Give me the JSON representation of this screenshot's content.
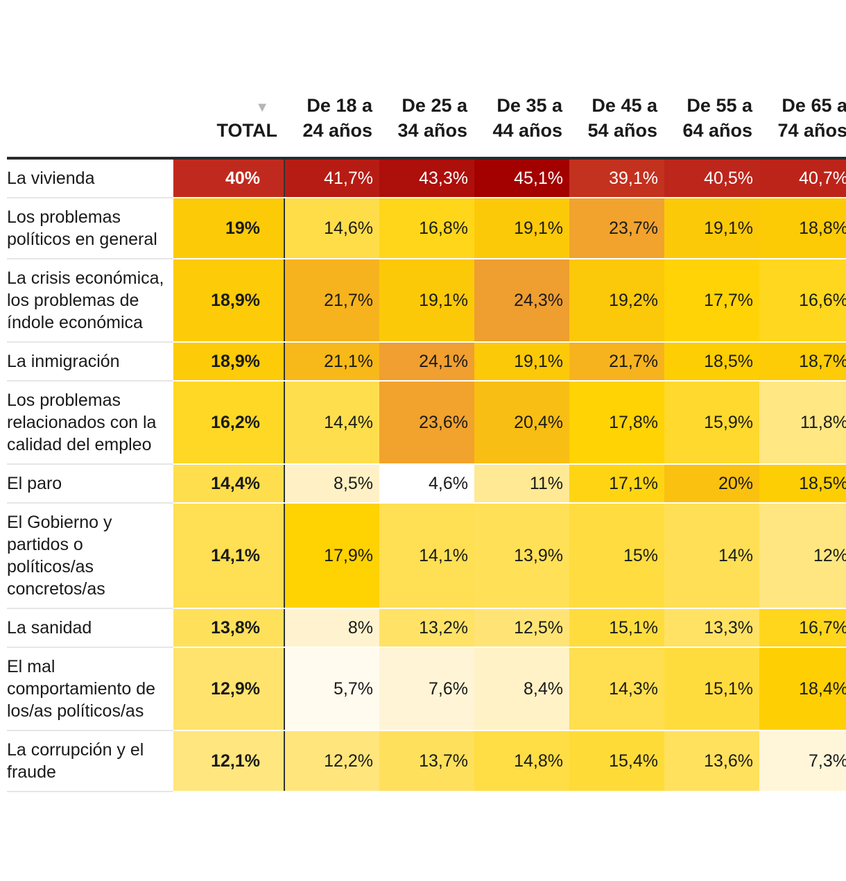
{
  "chart_data": {
    "type": "table",
    "columns": {
      "label": "",
      "total": "TOTAL",
      "sort_indicator": "▼",
      "ages": [
        "De 18 a 24 años",
        "De 25 a 34 años",
        "De 35 a 44 años",
        "De 45 a 54 años",
        "De 55 a 64 años",
        "De 65 a 74 años"
      ]
    },
    "rows": [
      {
        "label": "La vivienda",
        "total": "40%",
        "values": [
          "41,7%",
          "43,3%",
          "45,1%",
          "39,1%",
          "40,5%",
          "40,7%"
        ]
      },
      {
        "label": "Los problemas políticos en general",
        "total": "19%",
        "values": [
          "14,6%",
          "16,8%",
          "19,1%",
          "23,7%",
          "19,1%",
          "18,8%"
        ]
      },
      {
        "label": "La crisis económica, los problemas de índole económica",
        "total": "18,9%",
        "values": [
          "21,7%",
          "19,1%",
          "24,3%",
          "19,2%",
          "17,7%",
          "16,6%"
        ]
      },
      {
        "label": "La inmigración",
        "total": "18,9%",
        "values": [
          "21,1%",
          "24,1%",
          "19,1%",
          "21,7%",
          "18,5%",
          "18,7%"
        ]
      },
      {
        "label": "Los problemas relacionados con la calidad del empleo",
        "total": "16,2%",
        "values": [
          "14,4%",
          "23,6%",
          "20,4%",
          "17,8%",
          "15,9%",
          "11,8%"
        ]
      },
      {
        "label": "El paro",
        "total": "14,4%",
        "values": [
          "8,5%",
          "4,6%",
          "11%",
          "17,1%",
          "20%",
          "18,5%"
        ]
      },
      {
        "label": "El Gobierno y partidos o políticos/as concretos/as",
        "total": "14,1%",
        "values": [
          "17,9%",
          "14,1%",
          "13,9%",
          "15%",
          "14%",
          "12%"
        ]
      },
      {
        "label": "La sanidad",
        "total": "13,8%",
        "values": [
          "8%",
          "13,2%",
          "12,5%",
          "15,1%",
          "13,3%",
          "16,7%"
        ]
      },
      {
        "label": "El mal comportamiento de los/as políticos/as",
        "total": "12,9%",
        "values": [
          "5,7%",
          "7,6%",
          "8,4%",
          "14,3%",
          "15,1%",
          "18,4%"
        ]
      },
      {
        "label": "La corrupción y el fraude",
        "total": "12,1%",
        "values": [
          "12,2%",
          "13,7%",
          "14,8%",
          "15,4%",
          "13,6%",
          "7,3%"
        ]
      }
    ],
    "color_scale": {
      "stops": [
        {
          "value": 4.6,
          "color": "#ffffff"
        },
        {
          "value": 8,
          "color": "#fff3cf"
        },
        {
          "value": 12,
          "color": "#ffe680"
        },
        {
          "value": 18,
          "color": "#ffd200"
        },
        {
          "value": 24,
          "color": "#f0a030"
        },
        {
          "value": 40,
          "color": "#c02a1e"
        },
        {
          "value": 45.1,
          "color": "#a30000"
        }
      ],
      "light_text": "#ffffff",
      "dark_text": "#1a1a1a"
    }
  }
}
